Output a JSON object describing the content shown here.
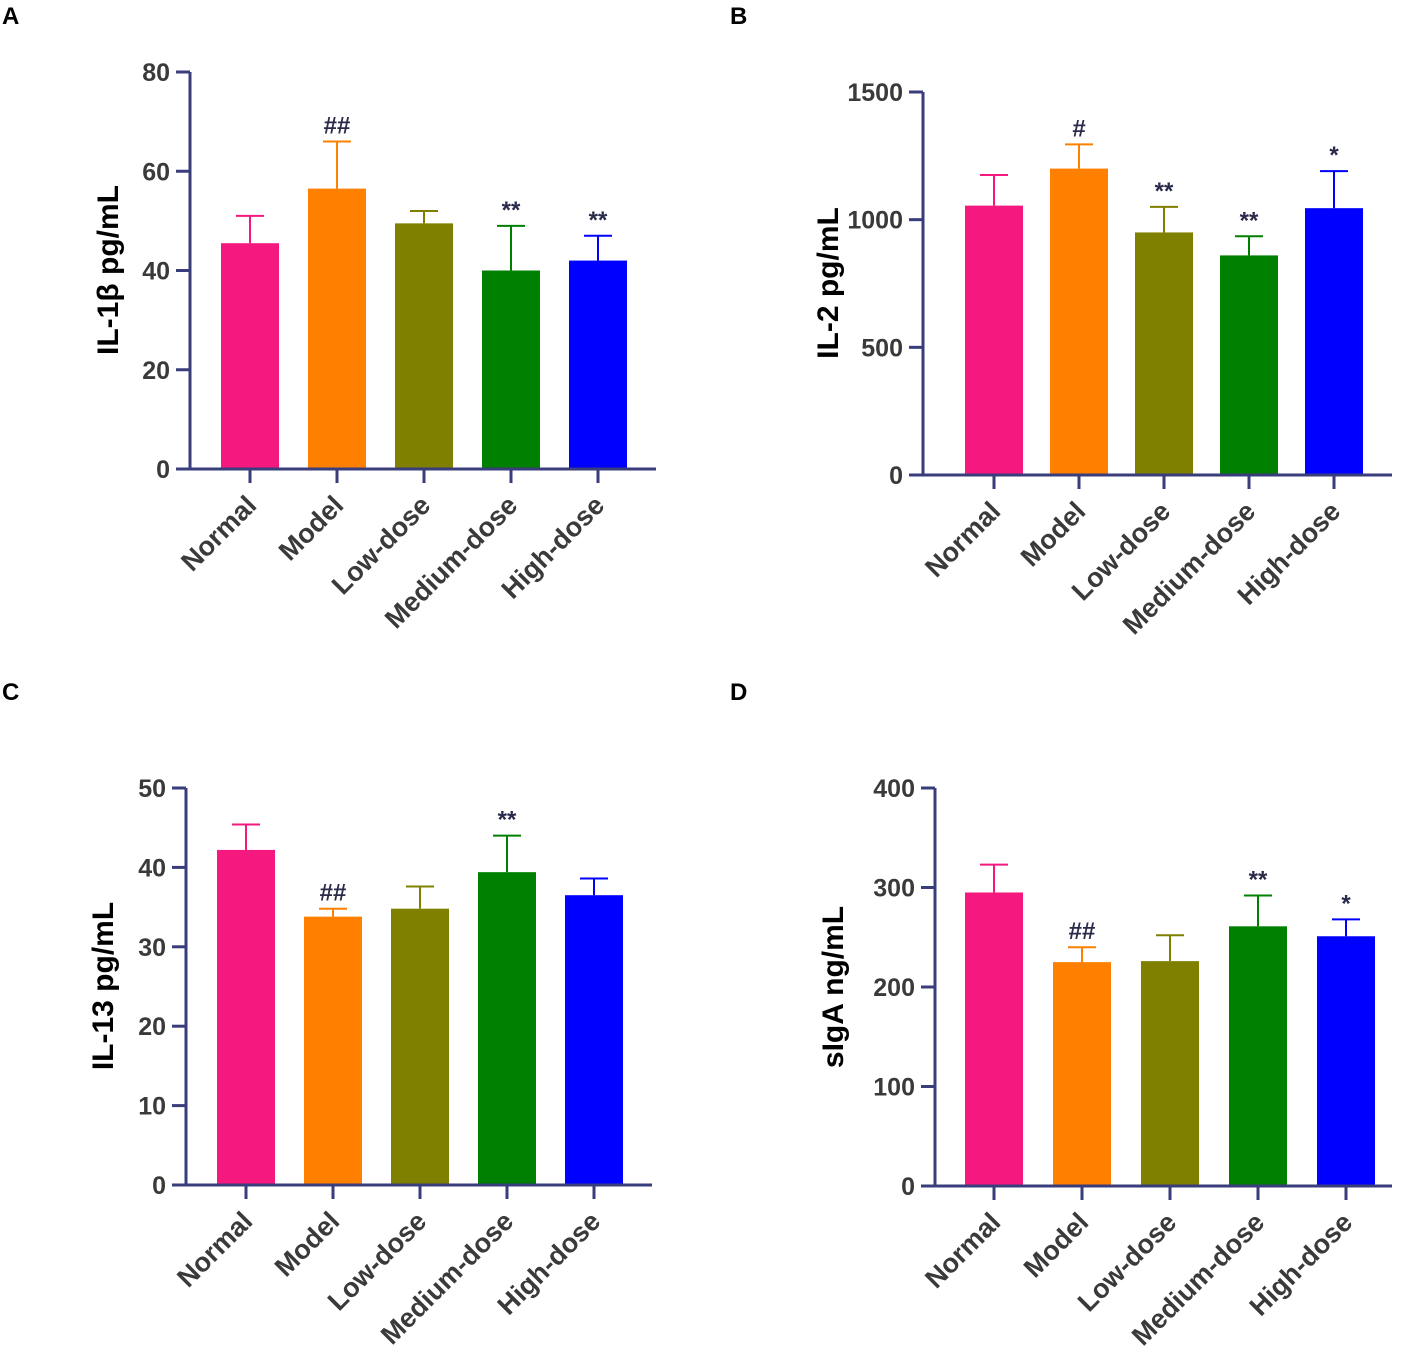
{
  "axis_color": "#3a3d7c",
  "chart_data": [
    {
      "panel": "A",
      "type": "bar",
      "ylabel": "IL-1β pg/mL",
      "categories": [
        "Normal",
        "Model",
        "Low-dose",
        "Medium-dose",
        "High-dose"
      ],
      "values": [
        45.5,
        56.5,
        49.5,
        40,
        42
      ],
      "errors": [
        5.5,
        9.5,
        2.5,
        9,
        5
      ],
      "annotations": [
        "",
        "##",
        "",
        "**",
        "**"
      ],
      "colors": [
        "#f5197f",
        "#ff8000",
        "#808000",
        "#008000",
        "#0000ff"
      ],
      "ylim": [
        0,
        80
      ],
      "yticks": [
        0,
        20,
        40,
        60,
        80
      ]
    },
    {
      "panel": "B",
      "type": "bar",
      "ylabel": "IL-2 pg/mL",
      "categories": [
        "Normal",
        "Model",
        "Low-dose",
        "Medium-dose",
        "High-dose"
      ],
      "values": [
        1055,
        1200,
        950,
        860,
        1045
      ],
      "errors": [
        120,
        95,
        100,
        75,
        145
      ],
      "annotations": [
        "",
        "#",
        "**",
        "**",
        "*"
      ],
      "colors": [
        "#f5197f",
        "#ff8000",
        "#808000",
        "#008000",
        "#0000ff"
      ],
      "ylim": [
        0,
        1500
      ],
      "yticks": [
        0,
        500,
        1000,
        1500
      ]
    },
    {
      "panel": "C",
      "type": "bar",
      "ylabel": "IL-13 pg/mL",
      "categories": [
        "Normal",
        "Model",
        "Low-dose",
        "Medium-dose",
        "High-dose"
      ],
      "values": [
        42.2,
        33.8,
        34.8,
        39.4,
        36.5
      ],
      "errors": [
        3.2,
        1.0,
        2.8,
        4.6,
        2.1
      ],
      "annotations": [
        "",
        "##",
        "",
        "**",
        ""
      ],
      "colors": [
        "#f5197f",
        "#ff8000",
        "#808000",
        "#008000",
        "#0000ff"
      ],
      "ylim": [
        0,
        50
      ],
      "yticks": [
        0,
        10,
        20,
        30,
        40,
        50
      ]
    },
    {
      "panel": "D",
      "type": "bar",
      "ylabel": "sIgA ng/mL",
      "categories": [
        "Normal",
        "Model",
        "Low-dose",
        "Medium-dose",
        "High-dose"
      ],
      "values": [
        295,
        225,
        226,
        261,
        251
      ],
      "errors": [
        28,
        15,
        26,
        31,
        17
      ],
      "annotations": [
        "",
        "##",
        "",
        "**",
        "*"
      ],
      "colors": [
        "#f5197f",
        "#ff8000",
        "#808000",
        "#008000",
        "#0000ff"
      ],
      "ylim": [
        0,
        400
      ],
      "yticks": [
        0,
        100,
        200,
        300,
        400
      ]
    }
  ]
}
